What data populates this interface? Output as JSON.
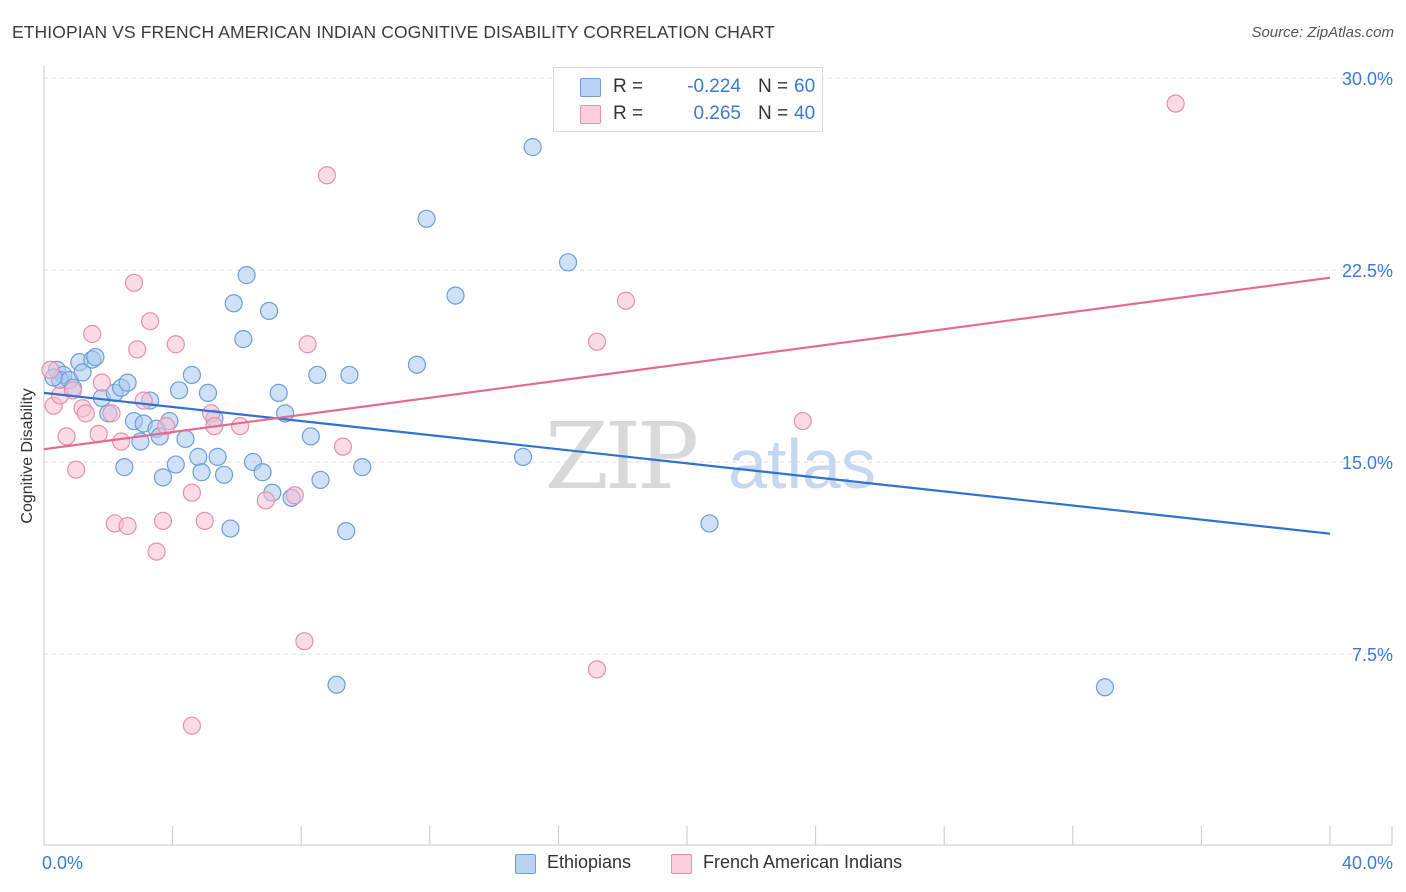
{
  "header": {
    "title": "ETHIOPIAN VS FRENCH AMERICAN INDIAN COGNITIVE DISABILITY CORRELATION CHART",
    "source": "Source: ZipAtlas.com"
  },
  "watermark": {
    "zip": "ZIP",
    "atlas": "atlas"
  },
  "legend_top": [
    {
      "r_label": "R =",
      "r_value": "-0.224",
      "n_label": "N =",
      "n_value": "60"
    },
    {
      "r_label": "R =",
      "r_value": "0.265",
      "n_label": "N =",
      "n_value": "40"
    }
  ],
  "legend_bottom": [
    {
      "label": "Ethiopians"
    },
    {
      "label": "French American Indians"
    }
  ],
  "colors": {
    "ethiopians_fill": "#a8c8f0",
    "ethiopians_stroke": "#6e9fd8",
    "ethiopians_line": "#2f72d0",
    "french_fill": "#f8c0d2",
    "french_stroke": "#e890ad",
    "french_line": "#e36a95",
    "tick_label": "#3a7bd5"
  },
  "chart_data": {
    "type": "scatter",
    "title": "ETHIOPIAN VS FRENCH AMERICAN INDIAN COGNITIVE DISABILITY CORRELATION CHART",
    "xlabel": "",
    "ylabel": "Cognitive Disability",
    "xlim": [
      0,
      40
    ],
    "ylim": [
      0,
      31
    ],
    "x_tick_labels": [
      "0.0%",
      "40.0%"
    ],
    "y_ticks": [
      7.5,
      15.0,
      22.5,
      30.0
    ],
    "y_tick_labels": [
      "7.5%",
      "15.0%",
      "22.5%",
      "30.0%"
    ],
    "grid": "horizontal dashed",
    "legend_placement": "bottom-center",
    "series": [
      {
        "name": "Ethiopians",
        "r": -0.224,
        "n": 60,
        "trend": {
          "x": [
            0,
            40
          ],
          "y": [
            17.7,
            12.2
          ]
        },
        "points": [
          [
            0.4,
            18.6
          ],
          [
            0.6,
            18.4
          ],
          [
            0.5,
            18.2
          ],
          [
            0.8,
            18.2
          ],
          [
            0.9,
            17.9
          ],
          [
            1.1,
            18.9
          ],
          [
            1.2,
            18.5
          ],
          [
            1.5,
            19.0
          ],
          [
            1.6,
            19.1
          ],
          [
            1.8,
            17.5
          ],
          [
            2.0,
            16.9
          ],
          [
            2.2,
            17.7
          ],
          [
            2.4,
            17.9
          ],
          [
            2.6,
            18.1
          ],
          [
            2.5,
            14.8
          ],
          [
            2.8,
            16.6
          ],
          [
            3.0,
            15.8
          ],
          [
            3.1,
            16.5
          ],
          [
            3.3,
            17.4
          ],
          [
            3.5,
            16.3
          ],
          [
            3.6,
            16.0
          ],
          [
            3.7,
            14.4
          ],
          [
            3.9,
            16.6
          ],
          [
            4.1,
            14.9
          ],
          [
            4.2,
            17.8
          ],
          [
            4.4,
            15.9
          ],
          [
            4.6,
            18.4
          ],
          [
            4.8,
            15.2
          ],
          [
            4.9,
            14.6
          ],
          [
            5.1,
            17.7
          ],
          [
            5.3,
            16.7
          ],
          [
            5.4,
            15.2
          ],
          [
            5.6,
            14.5
          ],
          [
            5.8,
            12.4
          ],
          [
            5.9,
            21.2
          ],
          [
            6.2,
            19.8
          ],
          [
            6.3,
            22.3
          ],
          [
            6.5,
            15.0
          ],
          [
            6.8,
            14.6
          ],
          [
            7.0,
            20.9
          ],
          [
            7.1,
            13.8
          ],
          [
            7.3,
            17.7
          ],
          [
            7.5,
            16.9
          ],
          [
            7.7,
            13.6
          ],
          [
            8.3,
            16.0
          ],
          [
            8.5,
            18.4
          ],
          [
            8.6,
            14.3
          ],
          [
            9.1,
            6.3
          ],
          [
            9.4,
            12.3
          ],
          [
            9.5,
            18.4
          ],
          [
            9.9,
            14.8
          ],
          [
            11.6,
            18.8
          ],
          [
            11.9,
            24.5
          ],
          [
            12.8,
            21.5
          ],
          [
            14.9,
            15.2
          ],
          [
            15.2,
            27.3
          ],
          [
            16.3,
            22.8
          ],
          [
            20.7,
            12.6
          ],
          [
            33.0,
            6.2
          ],
          [
            0.3,
            18.3
          ]
        ]
      },
      {
        "name": "French American Indians",
        "r": 0.265,
        "n": 40,
        "trend": {
          "x": [
            0,
            40
          ],
          "y": [
            15.5,
            22.2
          ]
        },
        "points": [
          [
            0.2,
            18.6
          ],
          [
            0.3,
            17.2
          ],
          [
            0.5,
            17.6
          ],
          [
            0.7,
            16.0
          ],
          [
            0.9,
            17.8
          ],
          [
            1.0,
            14.7
          ],
          [
            1.2,
            17.1
          ],
          [
            1.3,
            16.9
          ],
          [
            1.5,
            20.0
          ],
          [
            1.7,
            16.1
          ],
          [
            1.8,
            18.1
          ],
          [
            2.1,
            16.9
          ],
          [
            2.2,
            12.6
          ],
          [
            2.4,
            15.8
          ],
          [
            2.6,
            12.5
          ],
          [
            2.8,
            22.0
          ],
          [
            2.9,
            19.4
          ],
          [
            3.1,
            17.4
          ],
          [
            3.3,
            20.5
          ],
          [
            3.5,
            11.5
          ],
          [
            3.7,
            12.7
          ],
          [
            3.8,
            16.4
          ],
          [
            4.1,
            19.6
          ],
          [
            4.6,
            13.8
          ],
          [
            5.0,
            12.7
          ],
          [
            5.2,
            16.9
          ],
          [
            5.3,
            16.4
          ],
          [
            6.1,
            16.4
          ],
          [
            6.9,
            13.5
          ],
          [
            7.8,
            13.7
          ],
          [
            8.1,
            8.0
          ],
          [
            8.2,
            19.6
          ],
          [
            8.8,
            26.2
          ],
          [
            9.3,
            15.6
          ],
          [
            4.6,
            4.7
          ],
          [
            17.2,
            19.7
          ],
          [
            17.2,
            6.9
          ],
          [
            18.1,
            21.3
          ],
          [
            23.6,
            16.6
          ],
          [
            35.2,
            29.0
          ]
        ]
      }
    ]
  }
}
